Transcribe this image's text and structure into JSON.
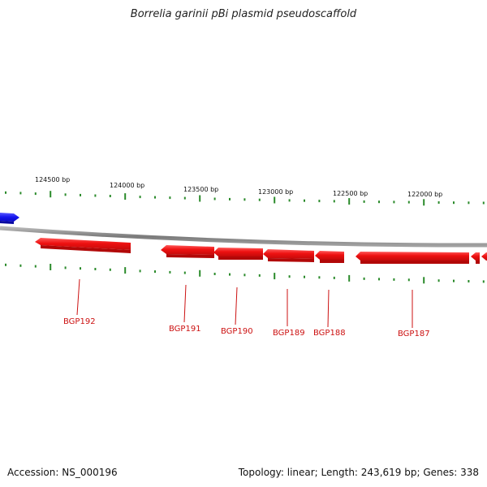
{
  "title": "Borrelia garinii pBi plasmid pseudoscaffold",
  "footer": {
    "accession": "Accession: NS_000196",
    "summary": "Topology: linear; Length: 243,619 bp; Genes: 338"
  },
  "colors": {
    "gene_forward": "#1a1aee",
    "gene_reverse": "#ee1a1a",
    "backbone": "#888888",
    "tick": "#2a8a2a",
    "label_text": "#cc1111"
  },
  "coordinates": [
    {
      "label": "124500 bp"
    },
    {
      "label": "124000 bp"
    },
    {
      "label": "123500 bp"
    },
    {
      "label": "123000 bp"
    },
    {
      "label": "122500 bp"
    },
    {
      "label": "122000 bp"
    }
  ],
  "genes": [
    {
      "name": "BGP192",
      "strand": "-"
    },
    {
      "name": "BGP191",
      "strand": "-"
    },
    {
      "name": "BGP190",
      "strand": "-"
    },
    {
      "name": "BGP189",
      "strand": "-"
    },
    {
      "name": "BGP188",
      "strand": "-"
    },
    {
      "name": "BGP187",
      "strand": "-"
    }
  ]
}
